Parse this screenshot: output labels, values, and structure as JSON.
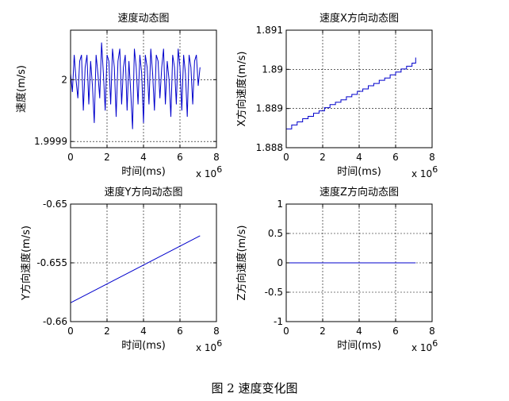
{
  "figure": {
    "caption": "图 2 速度变化图"
  },
  "chart_data": [
    {
      "type": "line",
      "title": "速度动态图",
      "xlabel": "时间(ms)",
      "ylabel": "速度(m/s)",
      "x_exponent": "x 10",
      "x_exponent_power": "6",
      "xlim": [
        0,
        8
      ],
      "ylim": [
        1.99989,
        2.00008
      ],
      "xticks": [
        0,
        2,
        4,
        6,
        8
      ],
      "xtick_labels": [
        "0",
        "2",
        "4",
        "6",
        "8"
      ],
      "yticks": [
        1.9999,
        2
      ],
      "ytick_labels": [
        "1.9999",
        "2"
      ],
      "grid": true,
      "line_color": "#0000cc",
      "series": [
        {
          "x": [
            0.0,
            0.1,
            0.2,
            0.3,
            0.4,
            0.5,
            0.6,
            0.7,
            0.8,
            0.9,
            1.0,
            1.1,
            1.2,
            1.3,
            1.4,
            1.5,
            1.6,
            1.7,
            1.8,
            1.9,
            2.0,
            2.1,
            2.2,
            2.3,
            2.4,
            2.5,
            2.6,
            2.7,
            2.8,
            2.9,
            3.0,
            3.1,
            3.2,
            3.3,
            3.4,
            3.5,
            3.6,
            3.7,
            3.8,
            3.9,
            4.0,
            4.1,
            4.2,
            4.3,
            4.4,
            4.5,
            4.6,
            4.7,
            4.8,
            4.9,
            5.0,
            5.1,
            5.2,
            5.3,
            5.4,
            5.5,
            5.6,
            5.7,
            5.8,
            5.9,
            6.0,
            6.1,
            6.2,
            6.3,
            6.4,
            6.5,
            6.6,
            6.7,
            6.8,
            6.9,
            7.0,
            7.1
          ],
          "y": [
            2.00001,
            1.99998,
            2.00004,
            2.0,
            1.99997,
            2.00003,
            2.00004,
            1.99995,
            2.00002,
            2.00004,
            1.99996,
            2.00003,
            1.99999,
            1.99993,
            2.00004,
            2.00001,
            1.99997,
            2.00006,
            2.00001,
            1.99995,
            2.00004,
            2.00003,
            1.99996,
            2.00005,
            2.00002,
            1.99994,
            2.00003,
            2.00005,
            1.99996,
            2.00002,
            2.00004,
            1.99995,
            2.00003,
            1.99998,
            1.99992,
            2.00005,
            2.00002,
            1.99996,
            2.00004,
            2.00001,
            1.99993,
            2.00004,
            2.00002,
            1.99996,
            2.00005,
            2.00001,
            1.99995,
            2.00004,
            2.00003,
            1.99997,
            2.00002,
            2.00005,
            1.99996,
            2.00003,
            2.0,
            1.99994,
            2.00004,
            2.00002,
            1.99996,
            2.00005,
            2.00002,
            1.99995,
            2.00004,
            2.00001,
            1.99994,
            2.00004,
            2.00002,
            1.99996,
            2.00003,
            2.00004,
            1.99999,
            2.00002
          ]
        }
      ]
    },
    {
      "type": "line",
      "title": "速度X方向动态图",
      "xlabel": "时间(ms)",
      "ylabel": "X方向速度(m/s)",
      "x_exponent": "x 10",
      "x_exponent_power": "6",
      "xlim": [
        0,
        8
      ],
      "ylim": [
        1.888,
        1.891
      ],
      "xticks": [
        0,
        2,
        4,
        6,
        8
      ],
      "xtick_labels": [
        "0",
        "2",
        "4",
        "6",
        "8"
      ],
      "yticks": [
        1.888,
        1.889,
        1.89,
        1.891
      ],
      "ytick_labels": [
        "1.888",
        "1.889",
        "1.89",
        "1.891"
      ],
      "grid": true,
      "line_color": "#0000cc",
      "series": [
        {
          "x": [
            0.0,
            0.3,
            0.3,
            0.6,
            0.6,
            0.9,
            0.9,
            1.2,
            1.2,
            1.5,
            1.5,
            1.8,
            1.8,
            2.1,
            2.1,
            2.4,
            2.4,
            2.7,
            2.7,
            3.0,
            3.0,
            3.3,
            3.3,
            3.6,
            3.6,
            3.9,
            3.9,
            4.2,
            4.2,
            4.5,
            4.5,
            4.8,
            4.8,
            5.1,
            5.1,
            5.4,
            5.4,
            5.7,
            5.7,
            6.0,
            6.0,
            6.3,
            6.3,
            6.6,
            6.6,
            6.9,
            6.9,
            7.1,
            7.1
          ],
          "y": [
            1.88848,
            1.88848,
            1.88858,
            1.88858,
            1.88866,
            1.88866,
            1.88874,
            1.88874,
            1.8888,
            1.8888,
            1.88888,
            1.88888,
            1.88894,
            1.88894,
            1.88902,
            1.88902,
            1.8891,
            1.8891,
            1.88916,
            1.88916,
            1.88922,
            1.88922,
            1.8893,
            1.8893,
            1.88936,
            1.88936,
            1.88944,
            1.88944,
            1.8895,
            1.8895,
            1.88958,
            1.88958,
            1.88964,
            1.88964,
            1.88972,
            1.88972,
            1.88978,
            1.88978,
            1.88986,
            1.88986,
            1.88993,
            1.88993,
            1.89001,
            1.89001,
            1.89008,
            1.89008,
            1.89016,
            1.89016,
            1.8903
          ]
        }
      ]
    },
    {
      "type": "line",
      "title": "速度Y方向动态图",
      "xlabel": "时间(ms)",
      "ylabel": "Y方向速度(m/s)",
      "x_exponent": "x 10",
      "x_exponent_power": "6",
      "xlim": [
        0,
        8
      ],
      "ylim": [
        -0.66,
        -0.65
      ],
      "xticks": [
        0,
        2,
        4,
        6,
        8
      ],
      "xtick_labels": [
        "0",
        "2",
        "4",
        "6",
        "8"
      ],
      "yticks": [
        -0.66,
        -0.655,
        -0.65
      ],
      "ytick_labels": [
        "-0.66",
        "-0.655",
        "-0.65"
      ],
      "grid": true,
      "line_color": "#0000cc",
      "series": [
        {
          "x": [
            0,
            7.1
          ],
          "y": [
            -0.6584,
            -0.6527
          ]
        }
      ]
    },
    {
      "type": "line",
      "title": "速度Z方向动态图",
      "xlabel": "时间(ms)",
      "ylabel": "Z方向速度(m/s)",
      "x_exponent": "x 10",
      "x_exponent_power": "6",
      "xlim": [
        0,
        8
      ],
      "ylim": [
        -1,
        1
      ],
      "xticks": [
        0,
        2,
        4,
        6,
        8
      ],
      "xtick_labels": [
        "0",
        "2",
        "4",
        "6",
        "8"
      ],
      "yticks": [
        -1,
        -0.5,
        0,
        0.5,
        1
      ],
      "ytick_labels": [
        "-1",
        "-0.5",
        "0",
        "0.5",
        "1"
      ],
      "grid": true,
      "line_color": "#0000cc",
      "series": [
        {
          "x": [
            0,
            7.1
          ],
          "y": [
            0,
            0
          ]
        }
      ]
    }
  ]
}
